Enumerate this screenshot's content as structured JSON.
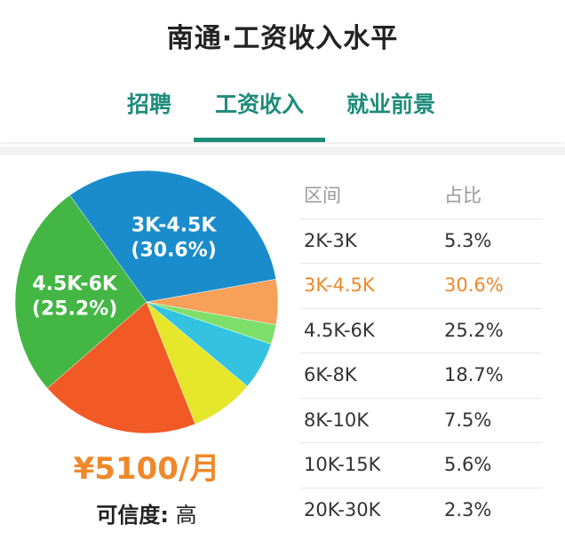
{
  "header": {
    "title": "南通·工资收入水平",
    "tabs": [
      {
        "label": "招聘",
        "active": false
      },
      {
        "label": "工资收入",
        "active": true
      },
      {
        "label": "就业前景",
        "active": false
      }
    ],
    "accent_color": "#1e8c7a"
  },
  "chart_data": {
    "type": "pie",
    "title": "",
    "slices": [
      {
        "label": "2K-3K",
        "value": 5.3,
        "color": "#f7a05a"
      },
      {
        "label": "3K-4.5K",
        "value": 30.6,
        "color": "#1a8ccc",
        "display": "3K-4.5K",
        "display_pct": "(30.6%)"
      },
      {
        "label": "4.5K-6K",
        "value": 25.2,
        "color": "#43b643",
        "display": "4.5K-6K",
        "display_pct": "(25.2%)"
      },
      {
        "label": "6K-8K",
        "value": 18.7,
        "color": "#f15a24"
      },
      {
        "label": "8K-10K",
        "value": 7.5,
        "color": "#e6e62a"
      },
      {
        "label": "10K-15K",
        "value": 5.6,
        "color": "#33c3e0"
      },
      {
        "label": "20K-30K",
        "value": 2.3,
        "color": "#7ddf6a"
      }
    ]
  },
  "summary": {
    "salary": "¥5100/月",
    "credibility_label": "可信度:",
    "credibility_value": "高",
    "salary_color": "#f0882a"
  },
  "table": {
    "headers": [
      "区间",
      "占比"
    ],
    "rows": [
      {
        "range": "2K-3K",
        "pct": "5.3%",
        "highlight": false
      },
      {
        "range": "3K-4.5K",
        "pct": "30.6%",
        "highlight": true
      },
      {
        "range": "4.5K-6K",
        "pct": "25.2%",
        "highlight": false
      },
      {
        "range": "6K-8K",
        "pct": "18.7%",
        "highlight": false
      },
      {
        "range": "8K-10K",
        "pct": "7.5%",
        "highlight": false
      },
      {
        "range": "10K-15K",
        "pct": "5.6%",
        "highlight": false
      },
      {
        "range": "20K-30K",
        "pct": "2.3%",
        "highlight": false
      }
    ]
  }
}
